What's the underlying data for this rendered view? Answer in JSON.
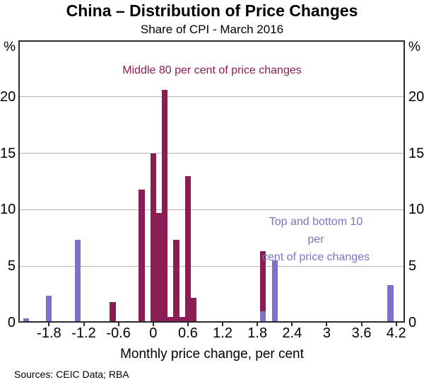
{
  "footer": {
    "sources": "Sources: CEIC Data; RBA"
  },
  "chart_data": {
    "type": "bar",
    "title": "China – Distribution of Price Changes",
    "subtitle": "Share of CPI - March 2016",
    "xlabel": "Monthly price change, per cent",
    "unit_label": "%",
    "xlim": [
      -2.33,
      4.35
    ],
    "ylim": [
      0,
      25
    ],
    "grid": true,
    "gridlines": [
      5,
      10,
      15,
      20
    ],
    "gridline_color": "#b5b5b5",
    "axis_color": "#2b2b2b",
    "background_color": "#ffffff",
    "yticks": [
      0,
      5,
      10,
      15,
      20
    ],
    "xticks": [
      -1.8,
      -1.2,
      -0.6,
      0,
      0.6,
      1.2,
      1.8,
      2.4,
      3,
      3.6,
      4.2
    ],
    "xtick_labels": [
      "-1.8",
      "-1.2",
      "-0.6",
      "0",
      "0.6",
      "1.2",
      "1.8",
      "2.4",
      "3",
      "3.6",
      "4.2"
    ],
    "bar_width_units": 0.1,
    "legend_position": "in-plot text annotations",
    "series": [
      {
        "id": "middle-80",
        "name": "Middle 80 per cent of price changes",
        "color": "#8C1D54",
        "points": [
          {
            "x": -0.7,
            "y": 1.8
          },
          {
            "x": -0.2,
            "y": 11.8
          },
          {
            "x": 0.0,
            "y": 15.0
          },
          {
            "x": 0.1,
            "y": 9.7
          },
          {
            "x": 0.2,
            "y": 20.6
          },
          {
            "x": 0.3,
            "y": 0.5
          },
          {
            "x": 0.4,
            "y": 7.3
          },
          {
            "x": 0.5,
            "y": 0.5
          },
          {
            "x": 0.6,
            "y": 13.0
          },
          {
            "x": 0.7,
            "y": 2.2
          },
          {
            "x": 1.9,
            "y": 6.3
          }
        ]
      },
      {
        "id": "top-bottom-10",
        "name": "Top and bottom 10 per cent of price changes",
        "color": "#7B73C8",
        "points": [
          {
            "x": -2.2,
            "y": 0.4
          },
          {
            "x": -1.8,
            "y": 2.4
          },
          {
            "x": -1.3,
            "y": 7.3
          },
          {
            "x": 1.9,
            "y": 1.0
          },
          {
            "x": 2.1,
            "y": 5.5
          },
          {
            "x": 4.1,
            "y": 3.3
          }
        ]
      }
    ],
    "annotations": [
      {
        "text": "Middle 80 per cent of price changes",
        "color": "#8C1D54"
      },
      {
        "text": "Top and bottom 10 per\ncent of price changes",
        "color": "#7B73C8"
      }
    ]
  }
}
